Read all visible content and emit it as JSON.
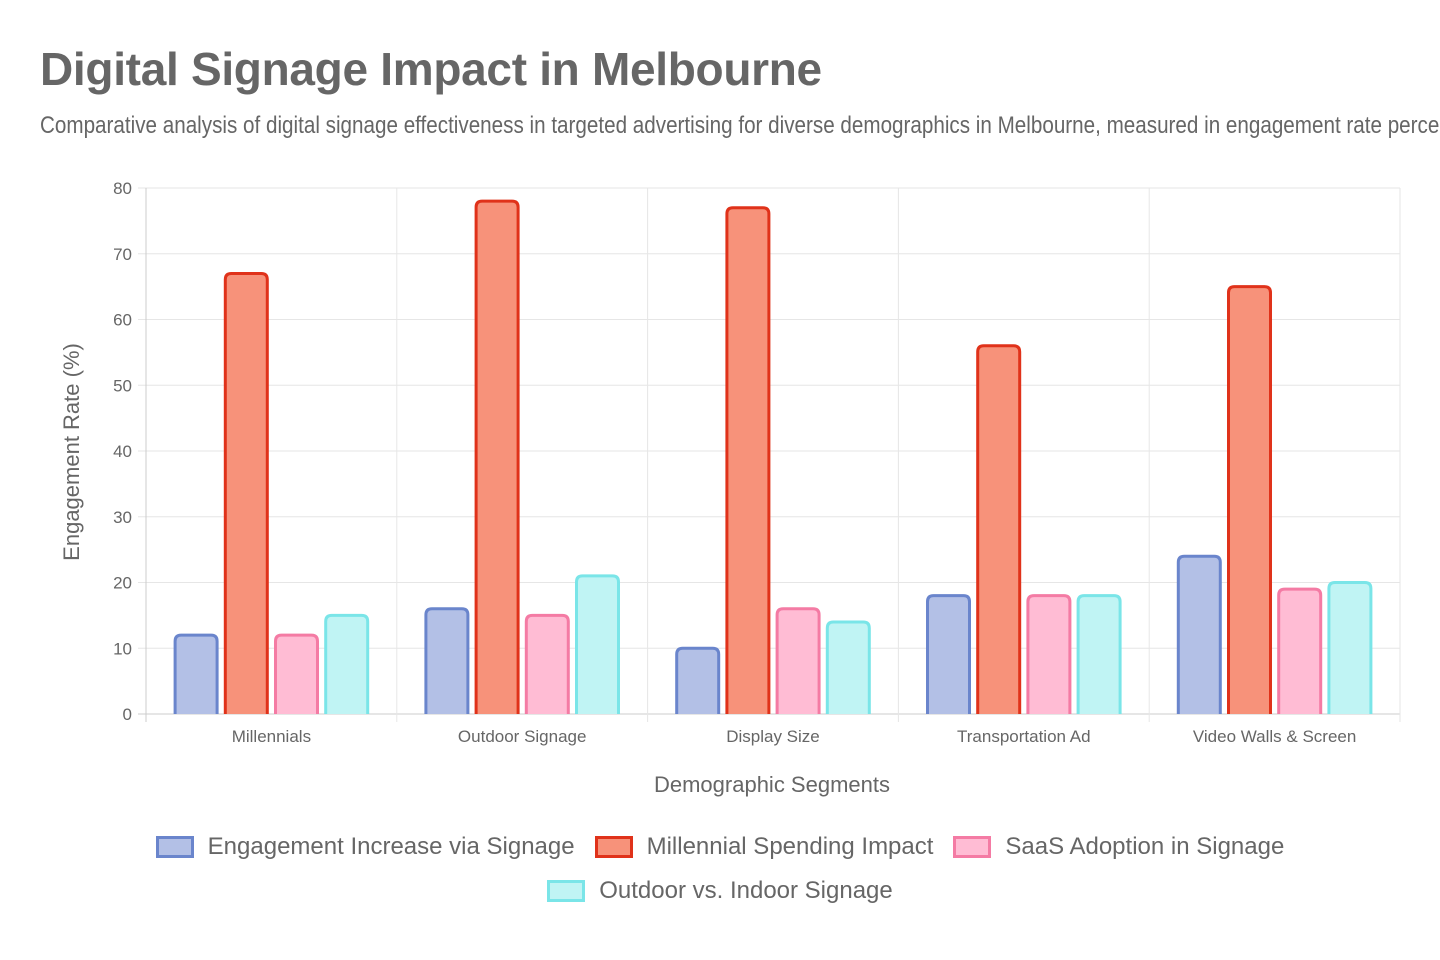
{
  "chart_data": {
    "type": "bar",
    "title": "Digital Signage Impact in Melbourne",
    "subtitle": "Comparative analysis of digital signage effectiveness in targeted advertising for diverse demographics in Melbourne, measured in engagement rate percentage.",
    "xlabel": "Demographic Segments",
    "ylabel": "Engagement Rate (%)",
    "ylim": [
      0,
      80
    ],
    "yticks": [
      0,
      10,
      20,
      30,
      40,
      50,
      60,
      70,
      80
    ],
    "grid": true,
    "legend_position": "bottom",
    "categories": [
      "Millennials",
      "Outdoor Signage",
      "Display Size",
      "Transportation Ad",
      "Video Walls & Screen"
    ],
    "series": [
      {
        "name": "Engagement Increase via Signage",
        "values": [
          12,
          16,
          10,
          18,
          24
        ],
        "fill": "#b3c0e6",
        "stroke": "#6a85cc"
      },
      {
        "name": "Millennial Spending Impact",
        "values": [
          67,
          78,
          77,
          56,
          65
        ],
        "fill": "#f7927a",
        "stroke": "#e0321a"
      },
      {
        "name": "SaaS Adoption in Signage",
        "values": [
          12,
          15,
          16,
          18,
          19
        ],
        "fill": "#ffbcd4",
        "stroke": "#f47ba4"
      },
      {
        "name": "Outdoor vs. Indoor Signage",
        "values": [
          15,
          21,
          14,
          18,
          20
        ],
        "fill": "#c0f4f4",
        "stroke": "#7ae5e8"
      }
    ]
  }
}
